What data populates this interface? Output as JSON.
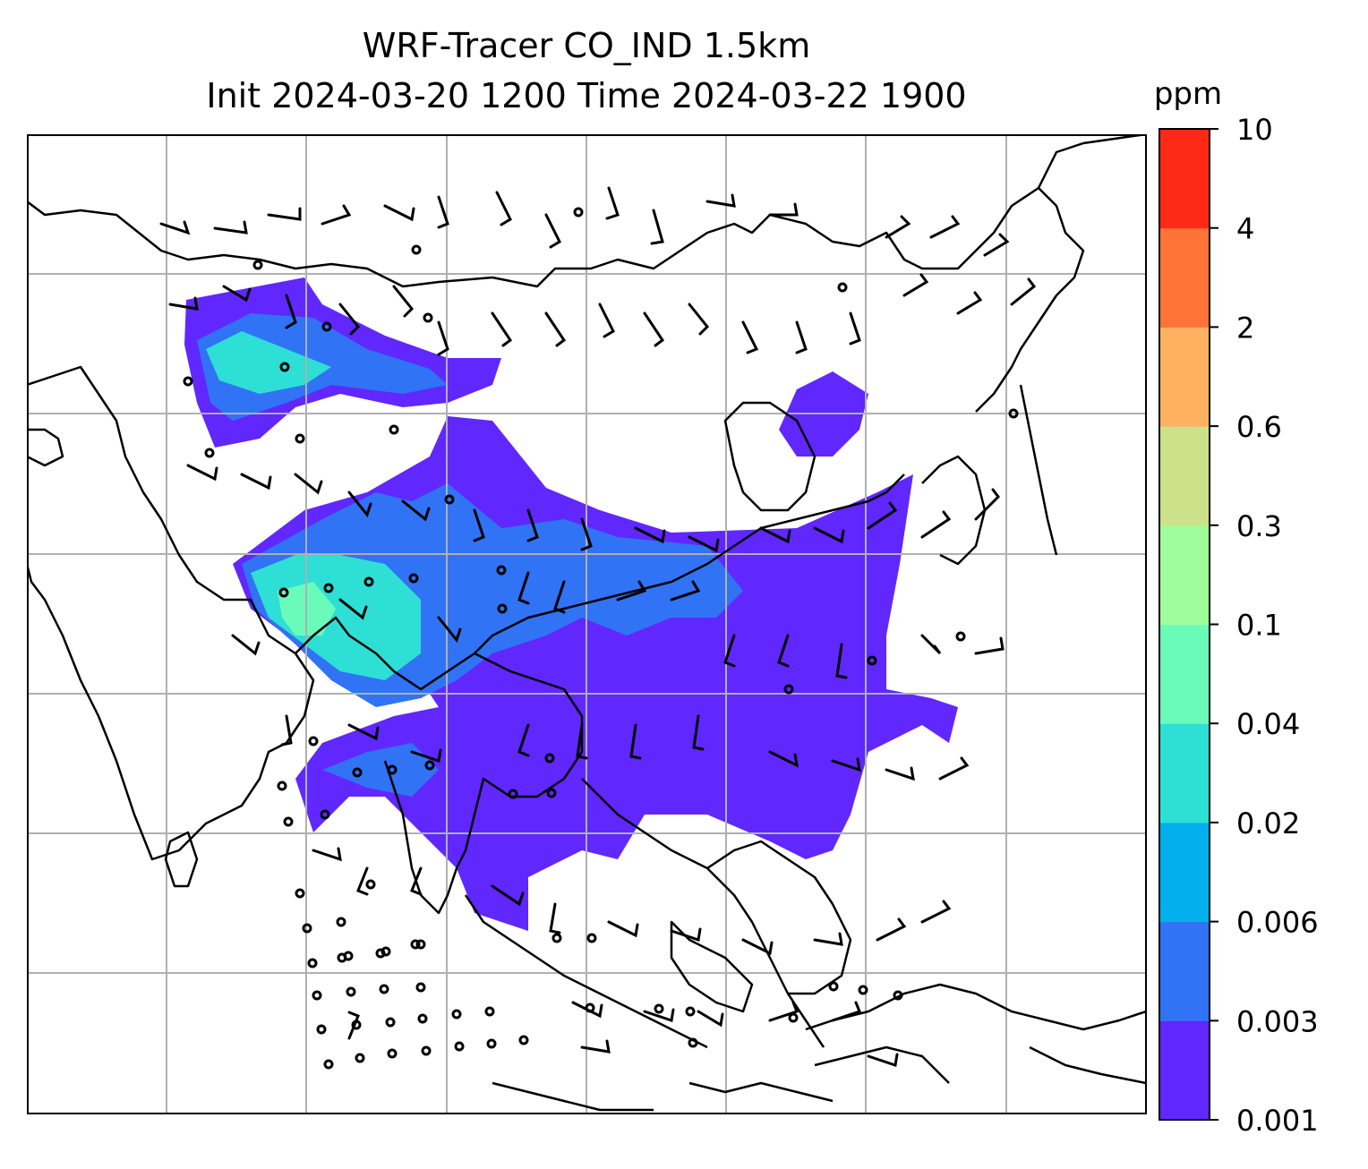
{
  "chart_data": {
    "type": "heatmap",
    "title_line1": "WRF-Tracer CO_IND 1.5km",
    "title_line2": "Init 2024-03-20 1200 Time 2024-03-22 1900",
    "grid": true,
    "colorbar": {
      "label": "ppm",
      "placement": "right",
      "levels": [
        "0.001",
        "0.003",
        "0.006",
        "0.02",
        "0.04",
        "0.1",
        "0.3",
        "0.6",
        "2",
        "4",
        "10"
      ],
      "colors": [
        "#6127ff",
        "#3073f5",
        "#03b0ed",
        "#2ddfd5",
        "#6afbbb",
        "#a0fd9b",
        "#cde18a",
        "#ffb161",
        "#ff7238",
        "#ff2a16"
      ]
    },
    "overlays": [
      "coastlines",
      "country borders",
      "wind barbs"
    ]
  }
}
